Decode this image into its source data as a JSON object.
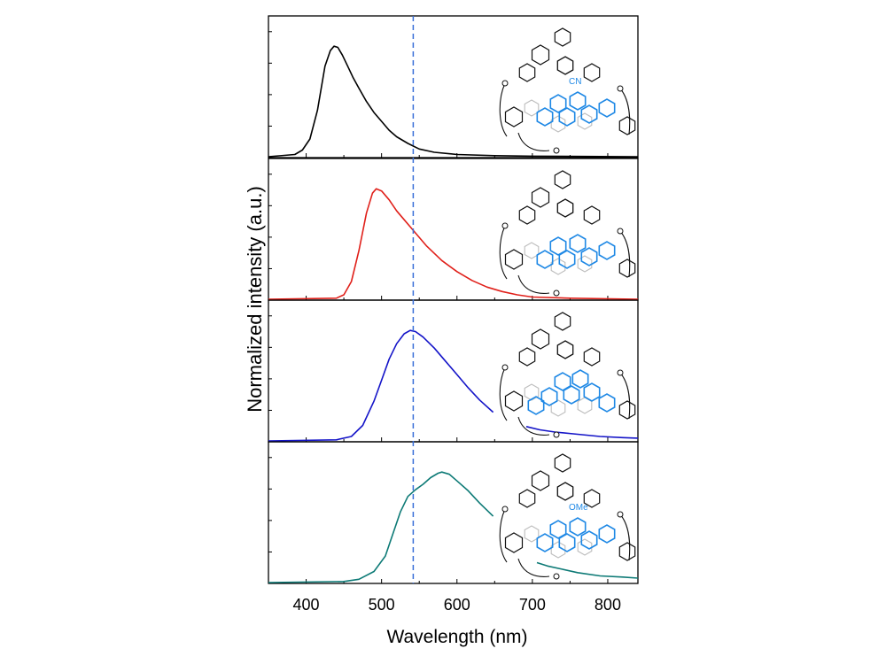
{
  "chart_data": {
    "type": "line",
    "layout": "stacked-panels",
    "xlabel": "Wavelength (nm)",
    "ylabel": "Normalized intensity (a.u.)",
    "xlim": [
      350,
      840
    ],
    "ylim": [
      0,
      1.05
    ],
    "x_ticks": [
      400,
      500,
      600,
      700,
      800
    ],
    "x_tick_labels": [
      "400",
      "500",
      "600",
      "700",
      "800"
    ],
    "y_ticks_shown": false,
    "reference_line": {
      "x": 542,
      "style": "dashed",
      "color": "#3a6fd8"
    },
    "panels": [
      {
        "color": "#000000",
        "substituent": "CN",
        "gap": null,
        "points": [
          [
            350,
            0
          ],
          [
            385,
            0.02
          ],
          [
            395,
            0.06
          ],
          [
            405,
            0.16
          ],
          [
            415,
            0.42
          ],
          [
            425,
            0.82
          ],
          [
            432,
            0.96
          ],
          [
            437,
            1.0
          ],
          [
            442,
            0.99
          ],
          [
            448,
            0.92
          ],
          [
            455,
            0.82
          ],
          [
            462,
            0.72
          ],
          [
            470,
            0.62
          ],
          [
            480,
            0.5
          ],
          [
            490,
            0.4
          ],
          [
            500,
            0.32
          ],
          [
            510,
            0.24
          ],
          [
            520,
            0.18
          ],
          [
            535,
            0.12
          ],
          [
            550,
            0.07
          ],
          [
            570,
            0.04
          ],
          [
            600,
            0.02
          ],
          [
            650,
            0.01
          ],
          [
            700,
            0.005
          ],
          [
            840,
            0
          ]
        ]
      },
      {
        "color": "#e0201a",
        "substituent": "",
        "gap": null,
        "points": [
          [
            350,
            0
          ],
          [
            440,
            0.01
          ],
          [
            450,
            0.04
          ],
          [
            460,
            0.16
          ],
          [
            470,
            0.44
          ],
          [
            480,
            0.78
          ],
          [
            488,
            0.96
          ],
          [
            493,
            1.0
          ],
          [
            500,
            0.98
          ],
          [
            510,
            0.9
          ],
          [
            520,
            0.8
          ],
          [
            530,
            0.72
          ],
          [
            545,
            0.6
          ],
          [
            560,
            0.48
          ],
          [
            580,
            0.35
          ],
          [
            600,
            0.25
          ],
          [
            620,
            0.17
          ],
          [
            640,
            0.11
          ],
          [
            660,
            0.07
          ],
          [
            680,
            0.04
          ],
          [
            700,
            0.02
          ],
          [
            750,
            0.01
          ],
          [
            840,
            0
          ]
        ]
      },
      {
        "color": "#1414c8",
        "substituent": "",
        "gap": [
          648,
          692
        ],
        "points": [
          [
            350,
            0
          ],
          [
            440,
            0.01
          ],
          [
            460,
            0.04
          ],
          [
            475,
            0.14
          ],
          [
            490,
            0.36
          ],
          [
            500,
            0.55
          ],
          [
            510,
            0.74
          ],
          [
            520,
            0.88
          ],
          [
            530,
            0.97
          ],
          [
            538,
            1.0
          ],
          [
            545,
            0.99
          ],
          [
            555,
            0.94
          ],
          [
            570,
            0.84
          ],
          [
            585,
            0.72
          ],
          [
            600,
            0.6
          ],
          [
            615,
            0.48
          ],
          [
            630,
            0.37
          ],
          [
            648,
            0.26
          ],
          [
            692,
            0.13
          ],
          [
            710,
            0.1
          ],
          [
            730,
            0.08
          ],
          [
            760,
            0.06
          ],
          [
            790,
            0.04
          ],
          [
            820,
            0.03
          ],
          [
            840,
            0.025
          ]
        ]
      },
      {
        "color": "#0d7a76",
        "substituent": "OMe",
        "gap": [
          648,
          706
        ],
        "points": [
          [
            350,
            0
          ],
          [
            450,
            0.01
          ],
          [
            470,
            0.03
          ],
          [
            490,
            0.1
          ],
          [
            505,
            0.24
          ],
          [
            515,
            0.44
          ],
          [
            525,
            0.64
          ],
          [
            535,
            0.78
          ],
          [
            545,
            0.84
          ],
          [
            555,
            0.89
          ],
          [
            565,
            0.95
          ],
          [
            575,
            0.99
          ],
          [
            580,
            1.0
          ],
          [
            590,
            0.98
          ],
          [
            600,
            0.92
          ],
          [
            615,
            0.83
          ],
          [
            630,
            0.72
          ],
          [
            648,
            0.6
          ],
          [
            706,
            0.18
          ],
          [
            720,
            0.15
          ],
          [
            740,
            0.12
          ],
          [
            760,
            0.09
          ],
          [
            790,
            0.06
          ],
          [
            820,
            0.05
          ],
          [
            840,
            0.04
          ]
        ]
      }
    ]
  }
}
